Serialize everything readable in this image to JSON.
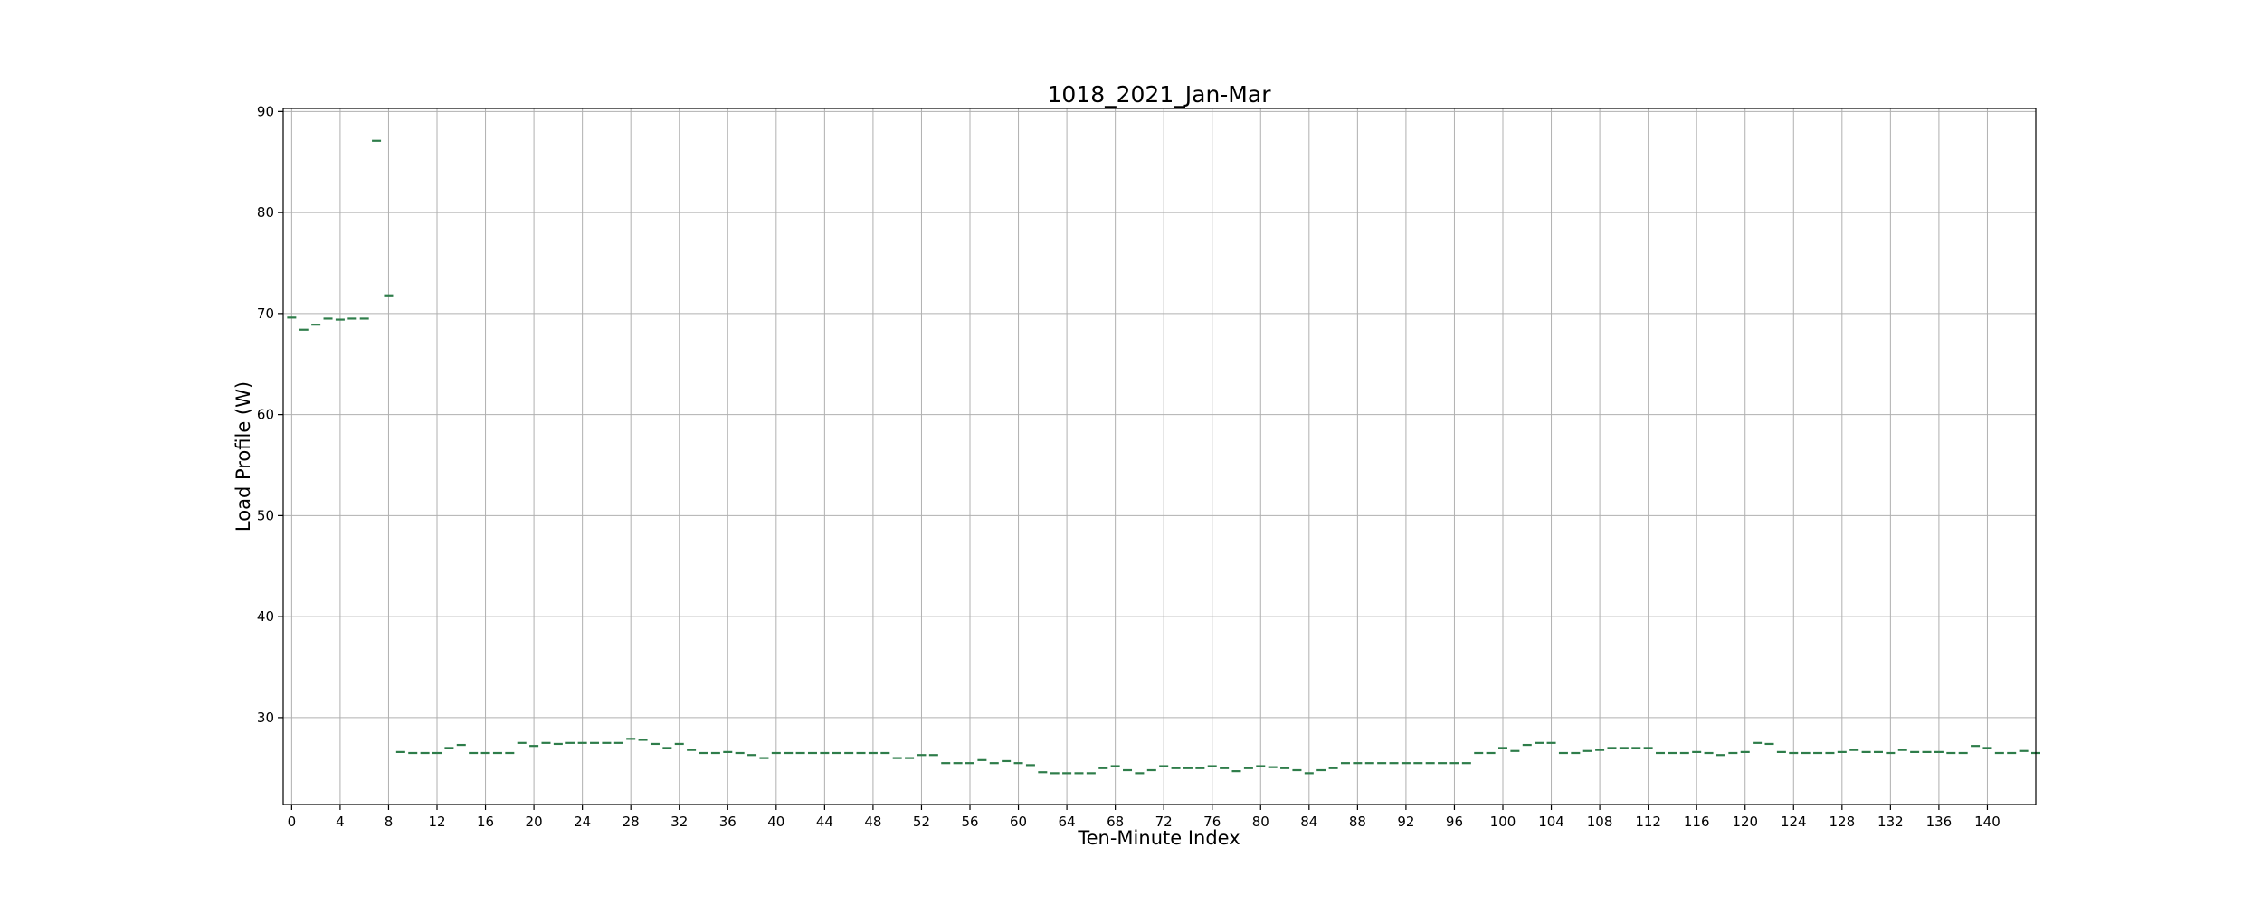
{
  "chart_data": {
    "type": "scatter",
    "title": "1018_2021_Jan-Mar",
    "xlabel": "Ten-Minute Index",
    "ylabel": "Load Profile (W)",
    "xlim": [
      -0.7,
      144
    ],
    "ylim": [
      21.4,
      90.3
    ],
    "xticks": [
      0,
      4,
      8,
      12,
      16,
      20,
      24,
      28,
      32,
      36,
      40,
      44,
      48,
      52,
      56,
      60,
      64,
      68,
      72,
      76,
      80,
      84,
      88,
      92,
      96,
      100,
      104,
      108,
      112,
      116,
      120,
      124,
      128,
      132,
      136,
      140
    ],
    "yticks": [
      30,
      40,
      50,
      60,
      70,
      80,
      90
    ],
    "grid": true,
    "marker": "hline",
    "color": "#2e7d4a",
    "values": [
      69.6,
      68.4,
      68.9,
      69.5,
      69.4,
      69.5,
      69.5,
      87.1,
      71.8,
      26.6,
      26.5,
      26.5,
      26.5,
      27.0,
      27.3,
      26.5,
      26.5,
      26.5,
      26.5,
      27.5,
      27.2,
      27.5,
      27.4,
      27.5,
      27.5,
      27.5,
      27.5,
      27.5,
      27.9,
      27.8,
      27.4,
      27.0,
      27.4,
      26.8,
      26.5,
      26.5,
      26.6,
      26.5,
      26.3,
      26.0,
      26.5,
      26.5,
      26.5,
      26.5,
      26.5,
      26.5,
      26.5,
      26.5,
      26.5,
      26.5,
      26.0,
      26.0,
      26.3,
      26.3,
      25.5,
      25.5,
      25.5,
      25.8,
      25.5,
      25.7,
      25.5,
      25.3,
      24.6,
      24.5,
      24.5,
      24.5,
      24.5,
      25.0,
      25.2,
      24.8,
      24.5,
      24.8,
      25.2,
      25.0,
      25.0,
      25.0,
      25.2,
      25.0,
      24.7,
      25.0,
      25.2,
      25.1,
      25.0,
      24.8,
      24.5,
      24.8,
      25.0,
      25.5,
      25.5,
      25.5,
      25.5,
      25.5,
      25.5,
      25.5,
      25.5,
      25.5,
      25.5,
      25.5,
      26.5,
      26.5,
      27.0,
      26.7,
      27.3,
      27.5,
      27.5,
      26.5,
      26.5,
      26.7,
      26.8,
      27.0,
      27.0,
      27.0,
      27.0,
      26.5,
      26.5,
      26.5,
      26.6,
      26.5,
      26.3,
      26.5,
      26.6,
      27.5,
      27.4,
      26.6,
      26.5,
      26.5,
      26.5,
      26.5,
      26.6,
      26.8,
      26.6,
      26.6,
      26.5,
      26.8,
      26.6,
      26.6,
      26.6,
      26.5,
      26.5,
      27.2,
      27.0,
      26.5,
      26.5,
      26.7,
      26.5
    ]
  }
}
